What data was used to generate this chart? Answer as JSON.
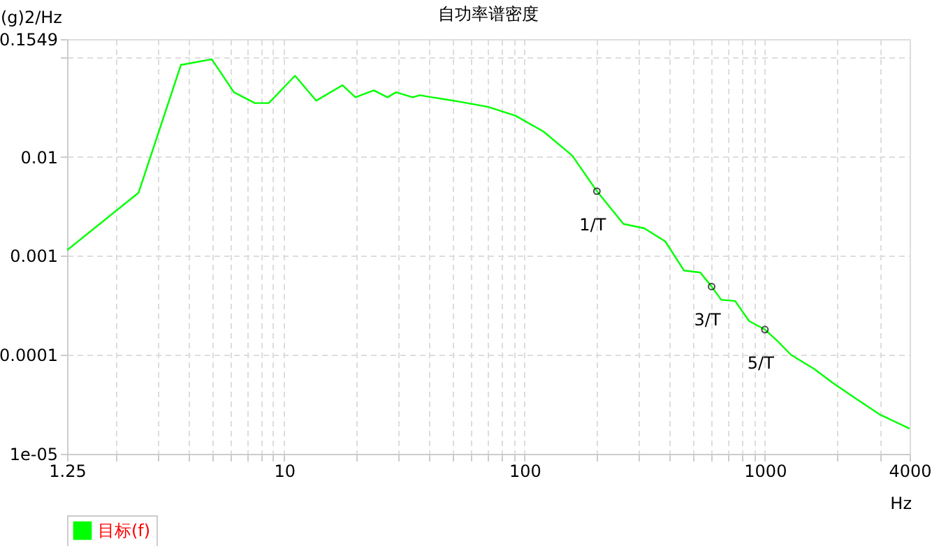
{
  "chart_data": {
    "type": "line",
    "title": "自功率谱密度",
    "xlabel": "Hz",
    "ylabel": "(g)2/Hz",
    "log": "xy",
    "grid": true,
    "legend": "bottom",
    "marker": "none",
    "line_style": "solid",
    "xlim": [
      1.25,
      4000
    ],
    "ylim": [
      1e-05,
      0.1549
    ],
    "xticks": [
      1.25,
      {
        "value": 2,
        "label": null
      },
      {
        "value": 3,
        "label": null
      },
      {
        "value": 4,
        "label": null
      },
      {
        "value": 5,
        "label": null
      },
      {
        "value": 6,
        "label": null
      },
      {
        "value": 7,
        "label": null
      },
      {
        "value": 8,
        "label": null
      },
      {
        "value": 9,
        "label": null
      },
      10,
      {
        "value": 20,
        "label": null
      },
      {
        "value": 30,
        "label": null
      },
      {
        "value": 40,
        "label": null
      },
      {
        "value": 50,
        "label": null
      },
      {
        "value": 60,
        "label": null
      },
      {
        "value": 70,
        "label": null
      },
      {
        "value": 80,
        "label": null
      },
      {
        "value": 90,
        "label": null
      },
      100,
      {
        "value": 200,
        "label": null
      },
      {
        "value": 300,
        "label": null
      },
      {
        "value": 400,
        "label": null
      },
      {
        "value": 500,
        "label": null
      },
      {
        "value": 600,
        "label": null
      },
      {
        "value": 700,
        "label": null
      },
      {
        "value": 800,
        "label": null
      },
      {
        "value": 900,
        "label": null
      },
      1000,
      {
        "value": 2000,
        "label": null
      },
      {
        "value": 3000,
        "label": null
      },
      4000
    ],
    "yticks": [
      {
        "value": 1e-05,
        "label": "1e-05"
      },
      0.0001,
      0.001,
      0.01,
      {
        "value": 0.1,
        "label": null
      },
      0.1549
    ],
    "x": [
      1.25,
      2.48,
      3.72,
      5.0,
      6.18,
      7.55,
      8.63,
      11.1,
      13.6,
      17.5,
      19.8,
      23.6,
      26.9,
      29.2,
      34.3,
      36.6,
      41.3,
      47.2,
      54.1,
      70.6,
      92,
      120,
      158,
      200,
      258,
      315,
      385,
      461,
      538,
      600,
      658,
      752,
      859,
      1000,
      1122,
      1284,
      1604,
      1918,
      2399,
      3000,
      4000
    ],
    "series": [
      {
        "name": "目标(f)",
        "color": "#00ff00",
        "values": [
          0.00114,
          0.00435,
          0.085,
          0.097,
          0.045,
          0.035,
          0.035,
          0.066,
          0.037,
          0.053,
          0.04,
          0.047,
          0.04,
          0.045,
          0.04,
          0.042,
          0.04,
          0.038,
          0.036,
          0.032,
          0.026,
          0.018,
          0.0103,
          0.0045,
          0.0021,
          0.0019,
          0.0014,
          0.00071,
          0.00068,
          0.00049,
          0.00036,
          0.00035,
          0.00022,
          0.00018,
          0.00014,
          0.0001,
          7.2e-05,
          5.2e-05,
          3.6e-05,
          2.5e-05,
          1.8e-05
        ]
      }
    ],
    "annotations": [
      {
        "text": "1/T",
        "x": 200,
        "y": 0.0045
      },
      {
        "text": "3/T",
        "x": 600,
        "y": 0.00049
      },
      {
        "text": "5/T",
        "x": 1000,
        "y": 0.00018
      }
    ]
  }
}
